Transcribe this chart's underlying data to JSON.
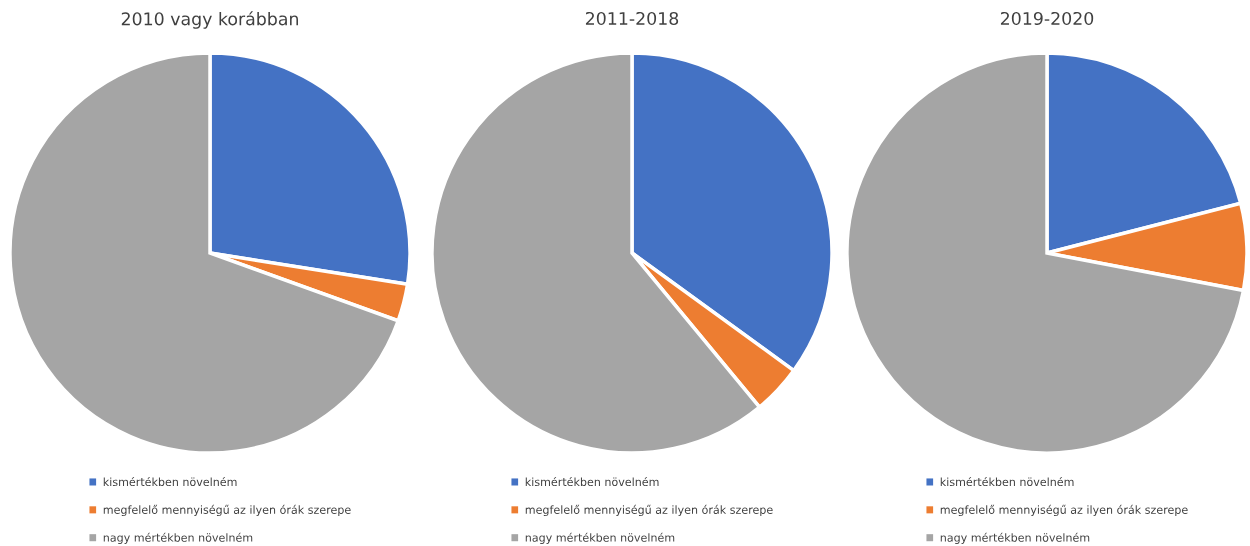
{
  "chart_data": [
    {
      "type": "pie",
      "title": "2010 vagy korábban",
      "categories": [
        "kismértékben növelném",
        "megfelelő mennyiségű az ilyen órák szerepe",
        "nagy mértékben növelném"
      ],
      "values": [
        27.5,
        3,
        69.5
      ],
      "colors": [
        "#4472c4",
        "#ed7d31",
        "#a5a5a5"
      ],
      "legend": "bottom"
    },
    {
      "type": "pie",
      "title": "2011-2018",
      "categories": [
        "kismértékben növelném",
        "megfelelő mennyiségű az ilyen órák szerepe",
        "nagy mértékben növelném"
      ],
      "values": [
        35,
        4,
        61
      ],
      "colors": [
        "#4472c4",
        "#ed7d31",
        "#a5a5a5"
      ],
      "legend": "bottom"
    },
    {
      "type": "pie",
      "title": "2019-2020",
      "categories": [
        "kismértékben növelném",
        "megfelelő mennyiségű az ilyen órák szerepe",
        "nagy mértékben növelném"
      ],
      "values": [
        21,
        7,
        72
      ],
      "colors": [
        "#4472c4",
        "#ed7d31",
        "#a5a5a5"
      ],
      "legend": "bottom"
    }
  ]
}
